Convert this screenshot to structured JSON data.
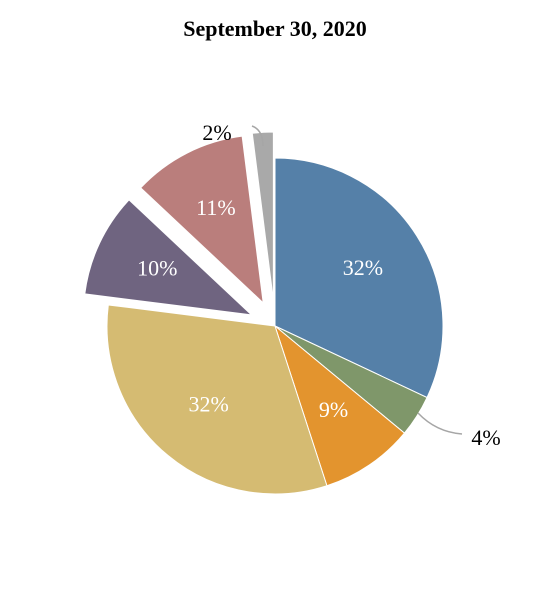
{
  "chart_data": {
    "type": "pie",
    "title": "September 30, 2020",
    "slices": [
      {
        "label": "32%",
        "value": 32,
        "color": "#5580A8",
        "label_color": "#ffffff",
        "exploded": false,
        "leader": false
      },
      {
        "label": "4%",
        "value": 4,
        "color": "#7F976A",
        "label_color": "#000000",
        "exploded": false,
        "leader": true
      },
      {
        "label": "9%",
        "value": 9,
        "color": "#E3942E",
        "label_color": "#ffffff",
        "exploded": false,
        "leader": false
      },
      {
        "label": "32%",
        "value": 32,
        "color": "#D5BB72",
        "label_color": "#ffffff",
        "exploded": false,
        "leader": false
      },
      {
        "label": "10%",
        "value": 10,
        "color": "#6F6480",
        "label_color": "#ffffff",
        "exploded": true,
        "leader": false
      },
      {
        "label": "11%",
        "value": 11,
        "color": "#BA7E7C",
        "label_color": "#ffffff",
        "exploded": true,
        "leader": false
      },
      {
        "label": "2%",
        "value": 2,
        "color": "#A9A9A9",
        "label_color": "#000000",
        "exploded": true,
        "leader": true
      }
    ]
  }
}
